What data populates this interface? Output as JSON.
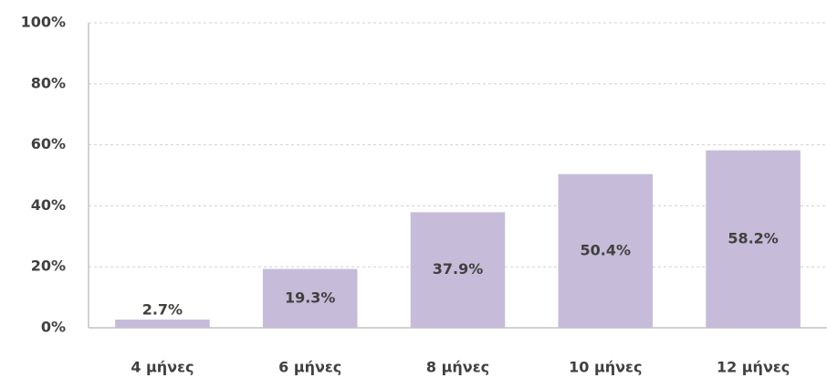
{
  "chart_data": {
    "type": "bar",
    "categories": [
      "4 μήνες",
      "6 μήνες",
      "8 μήνες",
      "10 μήνες",
      "12 μήνες"
    ],
    "values": [
      2.7,
      19.3,
      37.9,
      50.4,
      58.2
    ],
    "value_labels": [
      "2.7%",
      "19.3%",
      "37.9%",
      "50.4%",
      "58.2%"
    ],
    "color": "#c6bcd9",
    "ylim": [
      0,
      100
    ],
    "yticks": [
      {
        "value": 0,
        "label": "0%"
      },
      {
        "value": 20,
        "label": "20%"
      },
      {
        "value": 40,
        "label": "40%"
      },
      {
        "value": 60,
        "label": "60%"
      },
      {
        "value": 80,
        "label": "80%"
      },
      {
        "value": 100,
        "label": "100%"
      }
    ],
    "grid": true
  }
}
